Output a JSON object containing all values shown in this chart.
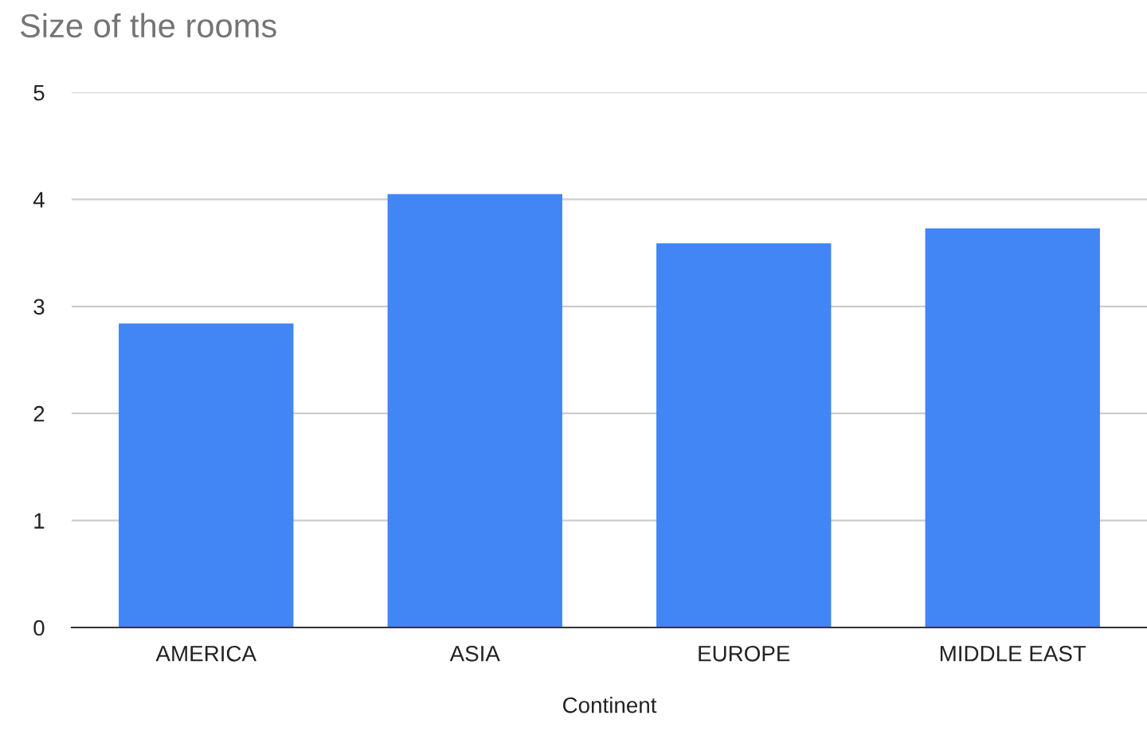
{
  "chart_data": {
    "type": "bar",
    "title": "Size of the rooms",
    "xlabel": "Continent",
    "categories": [
      "AMERICA",
      "ASIA",
      "EUROPE",
      "MIDDLE EAST"
    ],
    "values": [
      2.84,
      4.05,
      3.59,
      3.73
    ],
    "color": "#4285f4",
    "ylim": [
      0,
      5
    ],
    "yticks": [
      0,
      1,
      2,
      3,
      4,
      5
    ],
    "grid": "y"
  }
}
